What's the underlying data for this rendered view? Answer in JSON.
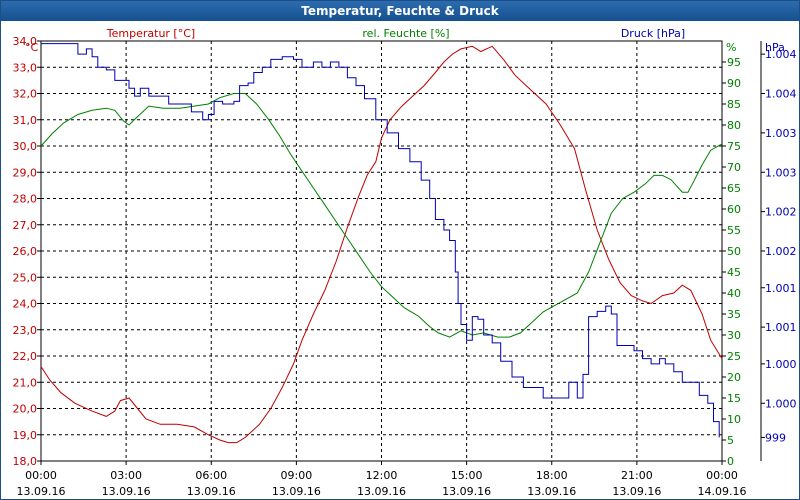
{
  "window": {
    "title": "Temperatur, Feuchte & Druck"
  },
  "colors": {
    "temperature": "#c00000",
    "humidity": "#008000",
    "pressure": "#0000b0",
    "titlebar": "#1d5a98"
  },
  "legend": {
    "temperature": "Temperatur [°C]",
    "humidity": "rel. Feuchte [%]",
    "pressure": "Druck [hPa]"
  },
  "chart_data": {
    "type": "line",
    "title": "Temperatur, Feuchte & Druck",
    "grid": true,
    "x_ticks": [
      {
        "time": "00:00",
        "date": "13.09.16"
      },
      {
        "time": "03:00",
        "date": "13.09.16"
      },
      {
        "time": "06:00",
        "date": "13.09.16"
      },
      {
        "time": "09:00",
        "date": "13.09.16"
      },
      {
        "time": "12:00",
        "date": "13.09.16"
      },
      {
        "time": "15:00",
        "date": "13.09.16"
      },
      {
        "time": "18:00",
        "date": "13.09.16"
      },
      {
        "time": "21:00",
        "date": "13.09.16"
      },
      {
        "time": "00:00",
        "date": "14.09.16"
      }
    ],
    "x_hours_range": [
      0,
      24
    ],
    "axes": {
      "temperature": {
        "unit": "°C",
        "range": [
          18,
          34
        ],
        "ticks": [
          "18,0",
          "19,0",
          "20,0",
          "21,0",
          "22,0",
          "23,0",
          "24,0",
          "25,0",
          "26,0",
          "27,0",
          "28,0",
          "29,0",
          "30,0",
          "31,0",
          "32,0",
          "33,0",
          "34,0"
        ]
      },
      "humidity": {
        "unit": "%",
        "range": [
          0,
          100
        ],
        "ticks": [
          "0",
          "5",
          "10",
          "15",
          "20",
          "25",
          "30",
          "35",
          "40",
          "45",
          "50",
          "55",
          "60",
          "65",
          "70",
          "75",
          "80",
          "85",
          "90",
          "95"
        ]
      },
      "pressure": {
        "unit": "hPa",
        "labels": [
          "1.004",
          "1.004",
          "1.003",
          "1.003",
          "1.002",
          "1.002",
          "1.001",
          "1.001",
          "1.000",
          "1.000",
          "999"
        ],
        "label_temp_positions": [
          33.5,
          32.0,
          30.5,
          29.0,
          27.5,
          26.0,
          24.6,
          23.1,
          21.7,
          20.2,
          18.9
        ]
      }
    },
    "series": [
      {
        "name": "Temperatur [°C]",
        "axis": "temperature",
        "points": [
          [
            0,
            21.6
          ],
          [
            0.3,
            21.1
          ],
          [
            0.7,
            20.6
          ],
          [
            1.2,
            20.2
          ],
          [
            1.8,
            19.9
          ],
          [
            2.3,
            19.7
          ],
          [
            2.6,
            19.9
          ],
          [
            2.8,
            20.3
          ],
          [
            3.1,
            20.4
          ],
          [
            3.4,
            20.0
          ],
          [
            3.7,
            19.6
          ],
          [
            4.2,
            19.4
          ],
          [
            4.8,
            19.4
          ],
          [
            5.4,
            19.3
          ],
          [
            5.9,
            19.0
          ],
          [
            6.3,
            18.8
          ],
          [
            6.6,
            18.7
          ],
          [
            6.9,
            18.7
          ],
          [
            7.2,
            18.9
          ],
          [
            7.7,
            19.4
          ],
          [
            8.1,
            20.0
          ],
          [
            8.5,
            20.8
          ],
          [
            8.9,
            21.7
          ],
          [
            9.2,
            22.6
          ],
          [
            9.6,
            23.6
          ],
          [
            10.0,
            24.5
          ],
          [
            10.4,
            25.6
          ],
          [
            10.8,
            26.9
          ],
          [
            11.2,
            28.1
          ],
          [
            11.5,
            28.9
          ],
          [
            11.8,
            29.4
          ],
          [
            12.0,
            30.3
          ],
          [
            12.3,
            31.0
          ],
          [
            12.7,
            31.5
          ],
          [
            13.1,
            31.9
          ],
          [
            13.5,
            32.3
          ],
          [
            13.9,
            32.8
          ],
          [
            14.2,
            33.2
          ],
          [
            14.5,
            33.5
          ],
          [
            14.8,
            33.7
          ],
          [
            15.2,
            33.8
          ],
          [
            15.5,
            33.6
          ],
          [
            15.9,
            33.8
          ],
          [
            16.3,
            33.3
          ],
          [
            16.7,
            32.7
          ],
          [
            17.2,
            32.2
          ],
          [
            17.8,
            31.6
          ],
          [
            18.3,
            30.8
          ],
          [
            18.8,
            29.9
          ],
          [
            19.2,
            28.3
          ],
          [
            19.6,
            26.8
          ],
          [
            20.0,
            25.7
          ],
          [
            20.4,
            24.8
          ],
          [
            20.8,
            24.3
          ],
          [
            21.2,
            24.1
          ],
          [
            21.5,
            24.0
          ],
          [
            21.9,
            24.3
          ],
          [
            22.3,
            24.4
          ],
          [
            22.6,
            24.7
          ],
          [
            22.9,
            24.5
          ],
          [
            23.3,
            23.6
          ],
          [
            23.6,
            22.6
          ],
          [
            24.0,
            21.9
          ]
        ]
      },
      {
        "name": "rel. Feuchte [%]",
        "axis": "humidity",
        "points": [
          [
            0,
            75
          ],
          [
            0.4,
            78
          ],
          [
            0.8,
            80.5
          ],
          [
            1.3,
            82.5
          ],
          [
            1.8,
            83.5
          ],
          [
            2.3,
            84
          ],
          [
            2.6,
            83.5
          ],
          [
            2.9,
            81
          ],
          [
            3.1,
            80
          ],
          [
            3.4,
            82
          ],
          [
            3.8,
            84.5
          ],
          [
            4.3,
            84
          ],
          [
            4.9,
            84
          ],
          [
            5.4,
            84.5
          ],
          [
            5.9,
            85
          ],
          [
            6.3,
            86.5
          ],
          [
            6.8,
            87.5
          ],
          [
            7.2,
            87.5
          ],
          [
            7.6,
            85
          ],
          [
            8.0,
            81.5
          ],
          [
            8.4,
            77.5
          ],
          [
            8.8,
            73
          ],
          [
            9.2,
            69
          ],
          [
            9.6,
            65
          ],
          [
            10.0,
            61
          ],
          [
            10.4,
            57
          ],
          [
            10.8,
            53
          ],
          [
            11.2,
            49
          ],
          [
            11.6,
            45
          ],
          [
            12.0,
            41.5
          ],
          [
            12.4,
            39
          ],
          [
            12.8,
            36.5
          ],
          [
            13.3,
            34.5
          ],
          [
            13.7,
            32
          ],
          [
            14.0,
            30.5
          ],
          [
            14.4,
            29.5
          ],
          [
            14.8,
            31
          ],
          [
            15.2,
            30
          ],
          [
            15.6,
            30.5
          ],
          [
            16.1,
            29.5
          ],
          [
            16.5,
            29.5
          ],
          [
            16.9,
            30.5
          ],
          [
            17.3,
            33
          ],
          [
            17.7,
            35.5
          ],
          [
            18.1,
            37
          ],
          [
            18.5,
            38.5
          ],
          [
            18.9,
            40
          ],
          [
            19.3,
            45
          ],
          [
            19.7,
            52
          ],
          [
            20.1,
            59
          ],
          [
            20.5,
            62.5
          ],
          [
            20.9,
            64
          ],
          [
            21.3,
            66
          ],
          [
            21.6,
            68
          ],
          [
            21.9,
            68
          ],
          [
            22.2,
            67
          ],
          [
            22.6,
            64
          ],
          [
            22.8,
            64
          ],
          [
            23.0,
            66.5
          ],
          [
            23.3,
            70.5
          ],
          [
            23.6,
            74
          ],
          [
            24.0,
            75.5
          ]
        ]
      },
      {
        "name": "Druck [hPa]",
        "axis": "pressure",
        "plotted_in": "temperature",
        "points": [
          [
            0,
            33.9
          ],
          [
            0.5,
            33.9
          ],
          [
            1.0,
            33.9
          ],
          [
            1.3,
            33.5
          ],
          [
            1.6,
            33.7
          ],
          [
            1.8,
            33.4
          ],
          [
            2.0,
            33.0
          ],
          [
            2.3,
            32.9
          ],
          [
            2.6,
            32.5
          ],
          [
            2.9,
            32.5
          ],
          [
            3.1,
            32.2
          ],
          [
            3.3,
            31.9
          ],
          [
            3.5,
            32.2
          ],
          [
            3.8,
            31.9
          ],
          [
            4.2,
            31.9
          ],
          [
            4.5,
            31.6
          ],
          [
            4.9,
            31.6
          ],
          [
            5.3,
            31.3
          ],
          [
            5.7,
            31.0
          ],
          [
            5.9,
            31.2
          ],
          [
            6.1,
            31.7
          ],
          [
            6.4,
            31.6
          ],
          [
            6.8,
            31.7
          ],
          [
            7.0,
            32.3
          ],
          [
            7.3,
            32.4
          ],
          [
            7.5,
            32.8
          ],
          [
            7.8,
            33.0
          ],
          [
            8.1,
            33.3
          ],
          [
            8.5,
            33.4
          ],
          [
            8.9,
            33.3
          ],
          [
            9.2,
            33.0
          ],
          [
            9.6,
            33.2
          ],
          [
            9.9,
            33.0
          ],
          [
            10.2,
            33.2
          ],
          [
            10.5,
            33.0
          ],
          [
            10.8,
            32.6
          ],
          [
            11.1,
            32.3
          ],
          [
            11.4,
            31.8
          ],
          [
            11.8,
            31.0
          ],
          [
            12.2,
            30.5
          ],
          [
            12.6,
            29.9
          ],
          [
            13.0,
            29.4
          ],
          [
            13.4,
            28.7
          ],
          [
            13.7,
            28.0
          ],
          [
            13.9,
            27.2
          ],
          [
            14.2,
            26.8
          ],
          [
            14.4,
            26.4
          ],
          [
            14.6,
            25.2
          ],
          [
            14.7,
            24.0
          ],
          [
            14.8,
            23.2
          ],
          [
            15.0,
            22.6
          ],
          [
            15.2,
            23.5
          ],
          [
            15.4,
            23.4
          ],
          [
            15.6,
            22.8
          ],
          [
            15.9,
            22.5
          ],
          [
            16.2,
            21.8
          ],
          [
            16.6,
            21.2
          ],
          [
            17.0,
            20.8
          ],
          [
            17.4,
            20.8
          ],
          [
            17.7,
            20.4
          ],
          [
            18.0,
            20.4
          ],
          [
            18.3,
            20.4
          ],
          [
            18.6,
            21.0
          ],
          [
            18.9,
            20.4
          ],
          [
            19.1,
            21.3
          ],
          [
            19.3,
            23.5
          ],
          [
            19.6,
            23.7
          ],
          [
            19.9,
            23.9
          ],
          [
            20.1,
            23.6
          ],
          [
            20.3,
            22.4
          ],
          [
            20.6,
            22.4
          ],
          [
            20.9,
            22.2
          ],
          [
            21.2,
            21.9
          ],
          [
            21.5,
            21.7
          ],
          [
            21.8,
            21.9
          ],
          [
            22.0,
            21.7
          ],
          [
            22.3,
            21.4
          ],
          [
            22.6,
            21.0
          ],
          [
            22.9,
            21.0
          ],
          [
            23.2,
            20.5
          ],
          [
            23.5,
            20.2
          ],
          [
            23.7,
            19.5
          ],
          [
            23.9,
            18.9
          ]
        ]
      }
    ]
  }
}
